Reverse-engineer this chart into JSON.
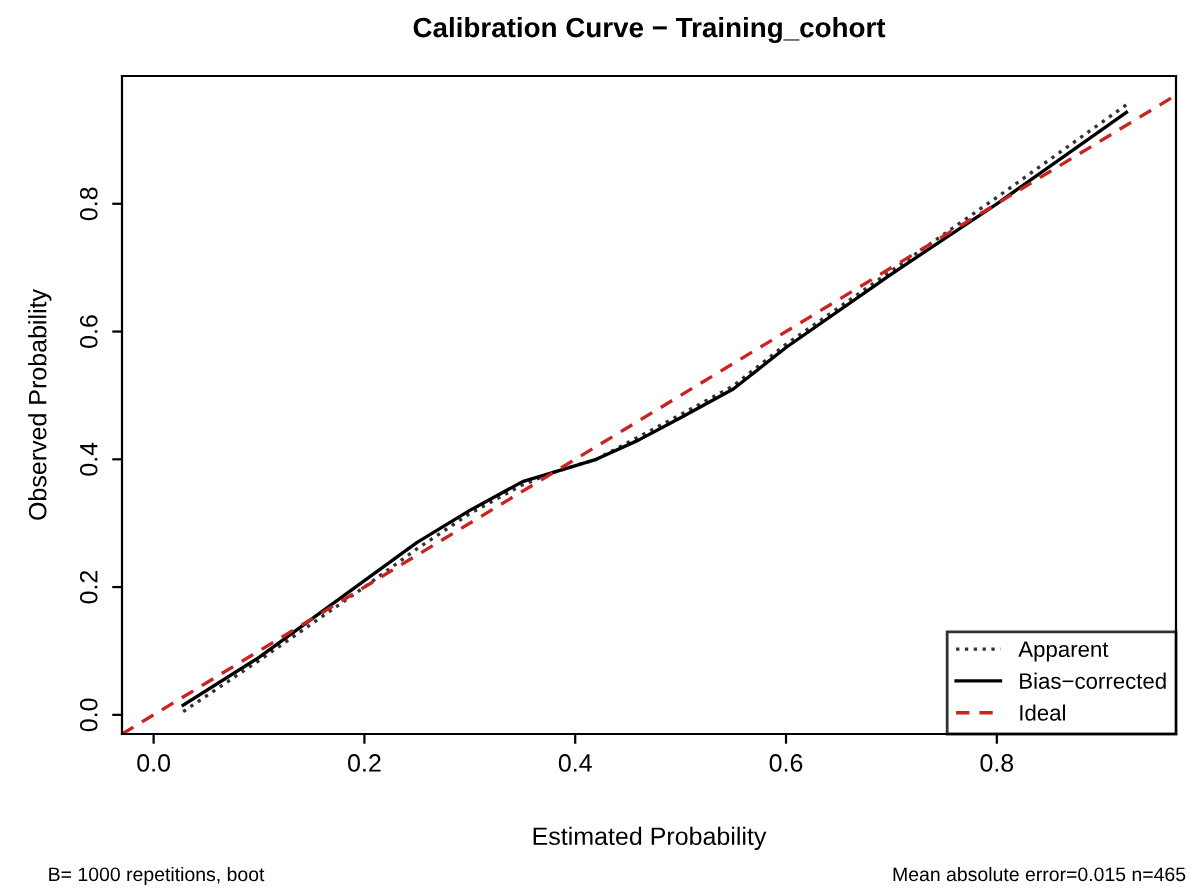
{
  "chart_data": {
    "type": "line",
    "title": "Calibration Curve − Training_cohort",
    "xlabel": "Estimated Probability",
    "ylabel": "Observed Probability",
    "annotations": [
      "B= 1000 repetitions, boot",
      "Mean absolute error=0.015 n=465"
    ],
    "xlim": [
      -0.03,
      0.97
    ],
    "ylim": [
      -0.03,
      1.0
    ],
    "xticks": [
      {
        "value": 0,
        "label": "0.0"
      },
      0.2,
      0.4,
      0.6,
      0.8
    ],
    "yticks": [
      {
        "value": 0,
        "label": "0.0"
      },
      0.2,
      0.4,
      0.6,
      0.8
    ],
    "grid": false,
    "legend": "bottom right",
    "marker": "none",
    "series": [
      {
        "name": "Apparent",
        "color": "#333333",
        "line_style": "dotted",
        "x": [
          0.028,
          0.1,
          0.2,
          0.25,
          0.3,
          0.35,
          0.38,
          0.42,
          0.46,
          0.5,
          0.55,
          0.6,
          0.7,
          0.8,
          0.923
        ],
        "values": [
          0.005,
          0.085,
          0.2,
          0.26,
          0.315,
          0.36,
          0.38,
          0.4,
          0.435,
          0.47,
          0.515,
          0.58,
          0.695,
          0.81,
          0.955
        ]
      },
      {
        "name": "Bias−corrected",
        "color": "#000000",
        "line_style": "solid",
        "x": [
          0.028,
          0.1,
          0.2,
          0.25,
          0.3,
          0.35,
          0.38,
          0.42,
          0.46,
          0.5,
          0.55,
          0.6,
          0.7,
          0.8,
          0.923
        ],
        "values": [
          0.015,
          0.09,
          0.21,
          0.27,
          0.32,
          0.365,
          0.38,
          0.4,
          0.43,
          0.465,
          0.51,
          0.575,
          0.69,
          0.8,
          0.943
        ]
      },
      {
        "name": "Ideal",
        "color": "#cc2222",
        "line_style": "dashed",
        "x": [
          -0.03,
          0.97
        ],
        "values": [
          -0.03,
          0.97
        ]
      }
    ]
  }
}
